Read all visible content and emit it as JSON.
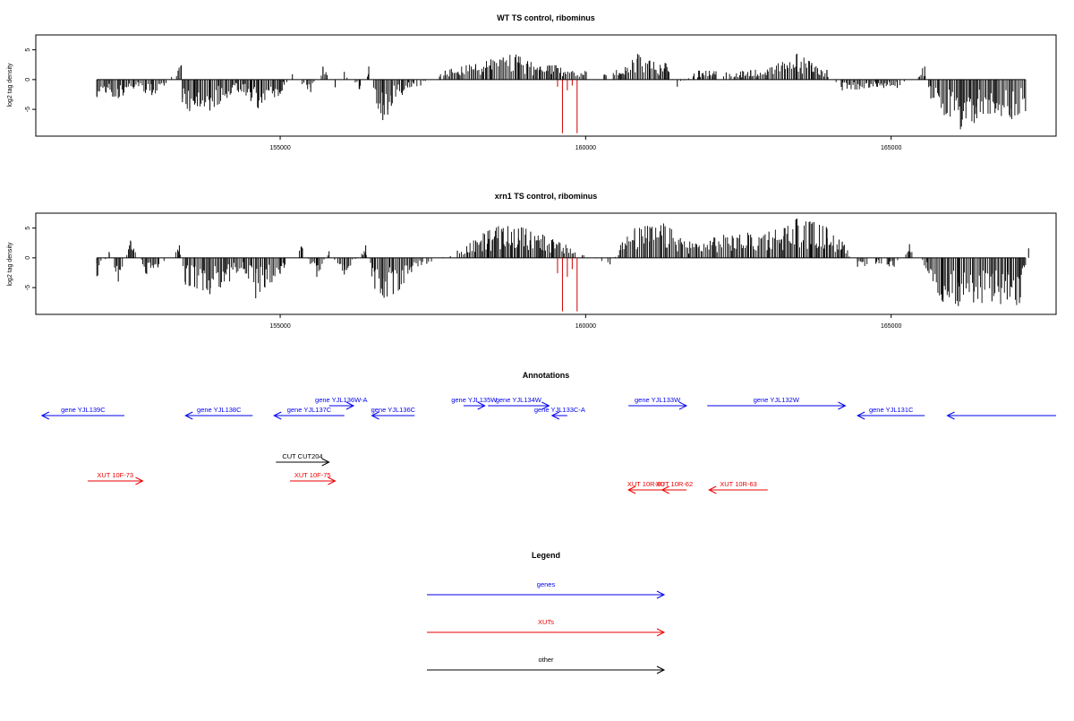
{
  "chart_data": [
    {
      "type": "bar",
      "title": "WT TS control, ribominus",
      "xlabel": "",
      "ylabel": "log2 tag density",
      "xlim": [
        151000,
        167700
      ],
      "ylim": [
        -9.5,
        7.5
      ],
      "xticks": [
        155000,
        160000,
        165000
      ],
      "yticks": [
        -5,
        0,
        5
      ],
      "grid": false,
      "baseline_color": "#000000",
      "series_colors": {
        "black": "#000000",
        "red": "#cc0000"
      },
      "red_spikes": [
        {
          "x": 159620,
          "y": -9.0
        },
        {
          "x": 159860,
          "y": -9.0
        },
        {
          "x": 159540,
          "y": -1.2
        },
        {
          "x": 159700,
          "y": -1.8
        },
        {
          "x": 159780,
          "y": -1.0
        }
      ],
      "series": [
        {
          "values": [
            {
              "x": 152000,
              "y": -2.8
            },
            {
              "x": 152150,
              "y": -2.2
            },
            {
              "x": 152350,
              "y": -3.1
            },
            {
              "x": 152600,
              "y": -1.5
            },
            {
              "x": 152900,
              "y": -2.6
            },
            {
              "x": 153100,
              "y": -1.0
            },
            {
              "x": 153400,
              "y": -3.8
            },
            {
              "x": 153520,
              "y": -4.9
            },
            {
              "x": 153600,
              "y": -4.2
            },
            {
              "x": 153380,
              "y": 2.4
            },
            {
              "x": 153850,
              "y": -5.2
            },
            {
              "x": 154300,
              "y": -1.8
            },
            {
              "x": 154520,
              "y": -3.6
            },
            {
              "x": 154640,
              "y": -4.8
            },
            {
              "x": 154700,
              "y": -3.9
            },
            {
              "x": 155000,
              "y": -2.4
            },
            {
              "x": 155200,
              "y": 0.9
            },
            {
              "x": 155500,
              "y": -2.1
            },
            {
              "x": 155700,
              "y": 2.2
            },
            {
              "x": 155900,
              "y": -1.3
            },
            {
              "x": 156050,
              "y": 1.3
            },
            {
              "x": 156300,
              "y": -1.6
            },
            {
              "x": 156450,
              "y": 2.2
            },
            {
              "x": 156580,
              "y": -4.0
            },
            {
              "x": 156680,
              "y": -6.8
            },
            {
              "x": 156760,
              "y": -5.9
            },
            {
              "x": 156820,
              "y": -4.4
            },
            {
              "x": 157150,
              "y": -1.2
            },
            {
              "x": 157300,
              "y": -1.0
            },
            {
              "x": 157700,
              "y": 1.5
            },
            {
              "x": 158200,
              "y": 2.6
            },
            {
              "x": 158450,
              "y": 3.4
            },
            {
              "x": 158650,
              "y": 3.7
            },
            {
              "x": 158900,
              "y": 3.9
            },
            {
              "x": 159050,
              "y": 3.1
            },
            {
              "x": 159250,
              "y": 2.1
            },
            {
              "x": 159400,
              "y": 2.4
            },
            {
              "x": 160300,
              "y": 0.8
            },
            {
              "x": 160650,
              "y": 2.1
            },
            {
              "x": 160850,
              "y": 4.3
            },
            {
              "x": 161050,
              "y": 3.2
            },
            {
              "x": 161300,
              "y": 2.8
            },
            {
              "x": 161500,
              "y": -1.2
            },
            {
              "x": 161850,
              "y": 1.5
            },
            {
              "x": 162300,
              "y": 1.2
            },
            {
              "x": 162700,
              "y": 1.6
            },
            {
              "x": 163050,
              "y": 2.0
            },
            {
              "x": 163450,
              "y": 4.2
            },
            {
              "x": 163700,
              "y": 2.8
            },
            {
              "x": 163950,
              "y": 1.6
            },
            {
              "x": 164200,
              "y": -1.8
            },
            {
              "x": 164650,
              "y": -1.3
            },
            {
              "x": 165100,
              "y": -1.4
            },
            {
              "x": 165550,
              "y": 2.2
            },
            {
              "x": 165650,
              "y": -3.2
            },
            {
              "x": 165900,
              "y": -5.8
            },
            {
              "x": 166150,
              "y": -7.9
            },
            {
              "x": 166400,
              "y": -6.5
            },
            {
              "x": 166700,
              "y": -5.6
            },
            {
              "x": 166950,
              "y": -6.3
            },
            {
              "x": 167200,
              "y": -5.3
            }
          ]
        }
      ]
    },
    {
      "type": "bar",
      "title": "xrn1 TS control, ribominus",
      "xlabel": "",
      "ylabel": "log2 tag density",
      "xlim": [
        151000,
        167700
      ],
      "ylim": [
        -9.5,
        7.5
      ],
      "xticks": [
        155000,
        160000,
        165000
      ],
      "yticks": [
        -5,
        0,
        5
      ],
      "grid": false,
      "baseline_color": "#000000",
      "series_colors": {
        "black": "#000000",
        "red": "#cc0000"
      },
      "red_spikes": [
        {
          "x": 159620,
          "y": -9.0
        },
        {
          "x": 159860,
          "y": -9.0
        },
        {
          "x": 159540,
          "y": -2.6
        },
        {
          "x": 159700,
          "y": -3.2
        },
        {
          "x": 159780,
          "y": -1.9
        }
      ],
      "series": [
        {
          "values": [
            {
              "x": 152000,
              "y": -3.1
            },
            {
              "x": 152200,
              "y": 1.0
            },
            {
              "x": 152350,
              "y": -4.0
            },
            {
              "x": 152550,
              "y": 2.9
            },
            {
              "x": 152800,
              "y": -2.6
            },
            {
              "x": 153000,
              "y": -1.6
            },
            {
              "x": 153350,
              "y": 2.1
            },
            {
              "x": 153450,
              "y": -4.5
            },
            {
              "x": 153600,
              "y": -4.9
            },
            {
              "x": 153850,
              "y": -6.1
            },
            {
              "x": 154400,
              "y": -1.9
            },
            {
              "x": 154600,
              "y": -6.8
            },
            {
              "x": 154750,
              "y": -5.0
            },
            {
              "x": 155000,
              "y": -2.7
            },
            {
              "x": 155350,
              "y": 1.9
            },
            {
              "x": 155600,
              "y": -3.2
            },
            {
              "x": 155800,
              "y": 1.1
            },
            {
              "x": 156050,
              "y": -2.8
            },
            {
              "x": 156400,
              "y": 2.1
            },
            {
              "x": 156550,
              "y": -5.2
            },
            {
              "x": 156700,
              "y": -6.7
            },
            {
              "x": 156850,
              "y": -6.1
            },
            {
              "x": 157150,
              "y": -2.4
            },
            {
              "x": 157400,
              "y": -1.0
            },
            {
              "x": 157900,
              "y": 1.2
            },
            {
              "x": 158200,
              "y": 2.9
            },
            {
              "x": 158400,
              "y": 4.5
            },
            {
              "x": 158650,
              "y": 5.0
            },
            {
              "x": 158900,
              "y": 4.9
            },
            {
              "x": 159100,
              "y": 4.4
            },
            {
              "x": 159300,
              "y": 3.9
            },
            {
              "x": 159450,
              "y": 3.0
            },
            {
              "x": 160400,
              "y": -1.1
            },
            {
              "x": 160600,
              "y": 2.6
            },
            {
              "x": 160800,
              "y": 4.6
            },
            {
              "x": 161050,
              "y": 5.2
            },
            {
              "x": 161300,
              "y": 5.3
            },
            {
              "x": 161550,
              "y": 3.3
            },
            {
              "x": 161800,
              "y": 2.4
            },
            {
              "x": 162100,
              "y": 3.4
            },
            {
              "x": 162400,
              "y": 3.7
            },
            {
              "x": 162700,
              "y": 3.9
            },
            {
              "x": 163000,
              "y": 4.4
            },
            {
              "x": 163250,
              "y": 5.0
            },
            {
              "x": 163450,
              "y": 6.5
            },
            {
              "x": 163700,
              "y": 5.7
            },
            {
              "x": 163950,
              "y": 4.9
            },
            {
              "x": 164200,
              "y": 2.6
            },
            {
              "x": 164450,
              "y": -1.5
            },
            {
              "x": 164750,
              "y": -1.0
            },
            {
              "x": 165050,
              "y": -1.5
            },
            {
              "x": 165300,
              "y": 2.3
            },
            {
              "x": 165600,
              "y": -2.2
            },
            {
              "x": 165850,
              "y": -7.4
            },
            {
              "x": 166100,
              "y": -8.1
            },
            {
              "x": 166350,
              "y": -7.5
            },
            {
              "x": 166650,
              "y": -7.3
            },
            {
              "x": 166900,
              "y": -7.0
            },
            {
              "x": 167100,
              "y": -7.6
            },
            {
              "x": 167250,
              "y": 1.6
            }
          ]
        }
      ]
    }
  ],
  "annotations": {
    "title": "Annotations",
    "xlim": [
      151000,
      167700
    ],
    "features": [
      {
        "label": "gene YJL139C",
        "kind": "gene",
        "start": 151100,
        "end": 152450,
        "strand": "-",
        "row": 1
      },
      {
        "label": "gene YJL138C",
        "kind": "gene",
        "start": 153450,
        "end": 154550,
        "strand": "-",
        "row": 1
      },
      {
        "label": "gene YJL137C",
        "kind": "gene",
        "start": 154900,
        "end": 156050,
        "strand": "-",
        "row": 1
      },
      {
        "label": "gene YJL136W-A",
        "kind": "gene",
        "start": 155800,
        "end": 156200,
        "strand": "+",
        "row": 0
      },
      {
        "label": "gene YJL136C",
        "kind": "gene",
        "start": 156500,
        "end": 157200,
        "strand": "-",
        "row": 1
      },
      {
        "label": "gene YJL135W",
        "kind": "gene",
        "start": 158000,
        "end": 158350,
        "strand": "+",
        "row": 0
      },
      {
        "label": "gene YJL134W",
        "kind": "gene",
        "start": 158400,
        "end": 159400,
        "strand": "+",
        "row": 0
      },
      {
        "label": "gene YJL133C-A",
        "kind": "gene",
        "start": 159450,
        "end": 159700,
        "strand": "-",
        "row": 1
      },
      {
        "label": "gene YJL133W",
        "kind": "gene",
        "start": 160700,
        "end": 161650,
        "strand": "+",
        "row": 0
      },
      {
        "label": "gene YJL132W",
        "kind": "gene",
        "start": 161990,
        "end": 164250,
        "strand": "+",
        "row": 0
      },
      {
        "label": "gene YJL131C",
        "kind": "gene",
        "start": 164450,
        "end": 165550,
        "strand": "-",
        "row": 1
      },
      {
        "label": "",
        "kind": "gene",
        "start": 165920,
        "end": 167700,
        "strand": "-",
        "row": 1
      },
      {
        "label": "CUT CUT204",
        "kind": "other",
        "start": 154930,
        "end": 155800,
        "strand": "+",
        "row": 2
      },
      {
        "label": "XUT 10F-73",
        "kind": "xut",
        "start": 151850,
        "end": 152750,
        "strand": "+",
        "row": 3
      },
      {
        "label": "XUT 10F-75",
        "kind": "xut",
        "start": 155160,
        "end": 155900,
        "strand": "+",
        "row": 3
      },
      {
        "label": "XUT 10R-80",
        "kind": "xut",
        "start": 160700,
        "end": 161270,
        "strand": "-",
        "row": 4
      },
      {
        "label": "XUT 10R-62",
        "kind": "xut",
        "start": 161250,
        "end": 161650,
        "strand": "-",
        "row": 4
      },
      {
        "label": "XUT 10R-63",
        "kind": "xut",
        "start": 162020,
        "end": 162980,
        "strand": "-",
        "row": 4
      }
    ]
  },
  "legend": {
    "title": "Legend",
    "items": [
      {
        "label": "genes",
        "color": "#0000ee"
      },
      {
        "label": "XUTs",
        "color": "#ee0000"
      },
      {
        "label": "other",
        "color": "#000000"
      }
    ]
  },
  "colors": {
    "gene": "#0000ee",
    "xut": "#ee0000",
    "other": "#000000"
  }
}
